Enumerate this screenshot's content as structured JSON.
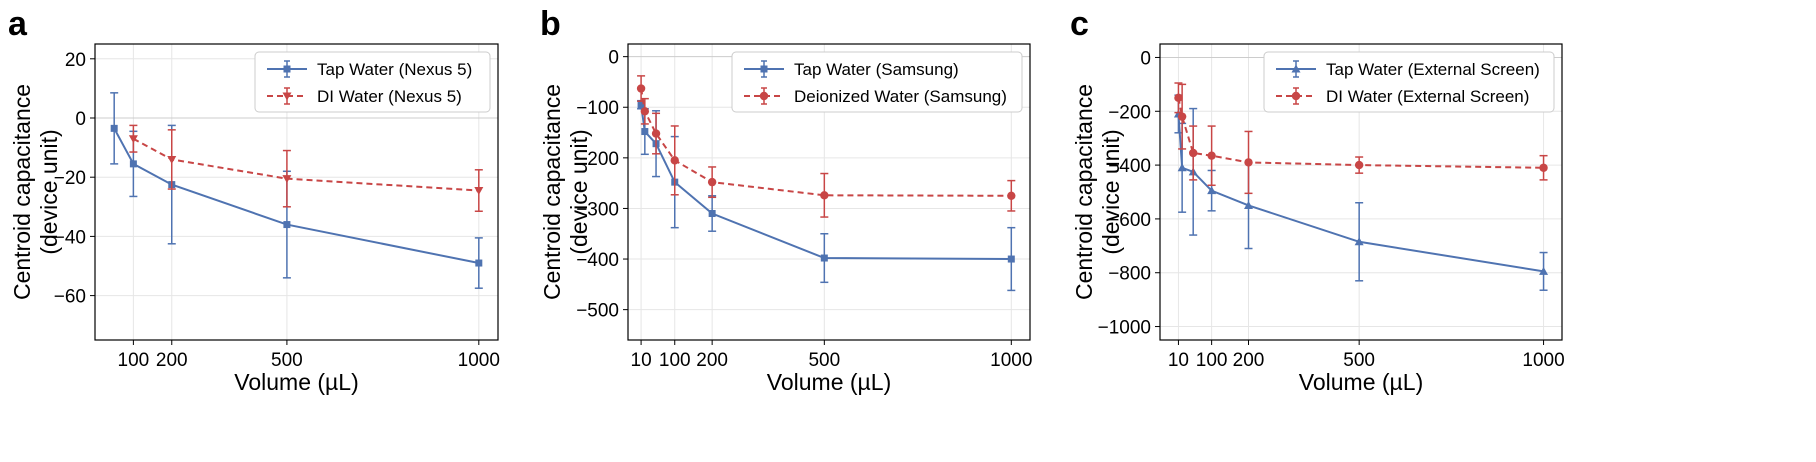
{
  "colors": {
    "tap": "#4f73b1",
    "di": "#c84646",
    "grid": "#e6e6e6",
    "zero_line": "#cccccc",
    "axis": "#000000"
  },
  "chart_data": [
    {
      "panel_label": "a",
      "type": "line",
      "xlabel": "Volume (µL)",
      "ylabel": [
        "Centroid capacitance",
        "(device unit)"
      ],
      "xlim": [
        0,
        1050
      ],
      "ylim": [
        -75,
        25
      ],
      "xticks": [
        100,
        200,
        500,
        1000
      ],
      "xtick_labels": [
        "100",
        "200",
        "500",
        "1000"
      ],
      "yticks": [
        20,
        0,
        -20,
        -40,
        -60
      ],
      "ytick_labels": [
        "20",
        "0",
        "−20",
        "−40",
        "−60"
      ],
      "legend_position": "top-right",
      "series": [
        {
          "name": "Tap Water (Nexus 5)",
          "style": "solid",
          "marker": "square",
          "color_key": "tap",
          "x": [
            50,
            100,
            200,
            500,
            1000
          ],
          "y": [
            -3.5,
            -15.5,
            -22.5,
            -36,
            -49
          ],
          "err": [
            12,
            11,
            20,
            18,
            8.5
          ]
        },
        {
          "name": "DI Water (Nexus 5)",
          "style": "dashed",
          "marker": "triangle-down",
          "color_key": "di",
          "x": [
            100,
            200,
            500,
            1000
          ],
          "y": [
            -7,
            -14,
            -20.5,
            -24.5
          ],
          "err": [
            4.5,
            10,
            9.5,
            7
          ]
        }
      ]
    },
    {
      "panel_label": "b",
      "type": "line",
      "xlabel": "Volume (µL)",
      "ylabel": [
        "Centroid capacitance",
        "(device unit)"
      ],
      "xlim": [
        -25,
        1050
      ],
      "ylim": [
        -560,
        25
      ],
      "xticks": [
        10,
        100,
        200,
        500,
        1000
      ],
      "xtick_labels": [
        "10",
        "100",
        "200",
        "500",
        "1000"
      ],
      "yticks": [
        0,
        -100,
        -200,
        -300,
        -400,
        -500
      ],
      "ytick_labels": [
        "0",
        "−100",
        "−200",
        "−300",
        "−400",
        "−500"
      ],
      "legend_position": "top-right",
      "series": [
        {
          "name": "Tap Water (Samsung)",
          "style": "solid",
          "marker": "square",
          "color_key": "tap",
          "x": [
            10,
            20,
            50,
            100,
            200,
            500,
            1000
          ],
          "y": [
            -95,
            -148,
            -172,
            -248,
            -310,
            -398,
            -400
          ],
          "err": [
            8,
            45,
            65,
            90,
            35,
            48,
            62
          ]
        },
        {
          "name": "Deionized Water (Samsung)",
          "style": "dashed",
          "marker": "circle",
          "color_key": "di",
          "x": [
            10,
            20,
            50,
            100,
            200,
            500,
            1000
          ],
          "y": [
            -63,
            -108,
            -152,
            -205,
            -248,
            -274,
            -275
          ],
          "err": [
            25,
            25,
            40,
            68,
            30,
            43,
            30
          ]
        }
      ]
    },
    {
      "panel_label": "c",
      "type": "line",
      "xlabel": "Volume (µL)",
      "ylabel": [
        "Centroid capacitance",
        "(device unit)"
      ],
      "xlim": [
        -40,
        1050
      ],
      "ylim": [
        -1050,
        50
      ],
      "xticks": [
        10,
        100,
        200,
        500,
        1000
      ],
      "xtick_labels": [
        "10",
        "100",
        "200",
        "500",
        "1000"
      ],
      "yticks": [
        0,
        -200,
        -400,
        -600,
        -800,
        -1000
      ],
      "ytick_labels": [
        "0",
        "−200",
        "−400",
        "−600",
        "−800",
        "−1000"
      ],
      "legend_position": "top-right",
      "series": [
        {
          "name": "Tap Water (External Screen)",
          "style": "solid",
          "marker": "triangle-up",
          "color_key": "tap",
          "x": [
            10,
            20,
            50,
            100,
            200,
            500,
            1000
          ],
          "y": [
            -210,
            -410,
            -425,
            -495,
            -550,
            -685,
            -795
          ],
          "err": [
            70,
            165,
            235,
            75,
            160,
            145,
            70
          ]
        },
        {
          "name": "DI Water (External Screen)",
          "style": "dashed",
          "marker": "circle",
          "color_key": "di",
          "x": [
            10,
            20,
            50,
            100,
            200,
            500,
            1000
          ],
          "y": [
            -150,
            -220,
            -355,
            -365,
            -390,
            -400,
            -410
          ],
          "err": [
            55,
            120,
            100,
            110,
            115,
            30,
            45
          ]
        }
      ]
    }
  ]
}
